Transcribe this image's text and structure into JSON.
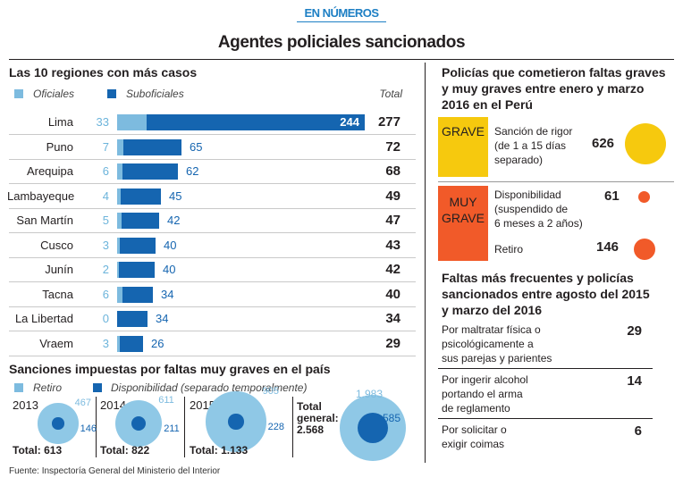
{
  "header": {
    "kicker": "EN NÚMEROS",
    "title": "Agentes policiales sancionados"
  },
  "chart_data": [
    {
      "type": "bar",
      "title": "Las 10 regiones con más casos",
      "total_header": "Total",
      "categories": [
        "Lima",
        "Puno",
        "Arequipa",
        "Lambayeque",
        "San Martín",
        "Cusco",
        "Junín",
        "Tacna",
        "La Libertad",
        "Vraem"
      ],
      "series": [
        {
          "name": "Oficiales",
          "color": "#7dbbdf",
          "values": [
            33,
            7,
            6,
            4,
            5,
            3,
            2,
            6,
            0,
            3
          ]
        },
        {
          "name": "Suboficiales",
          "color": "#1565b0",
          "values": [
            244,
            65,
            62,
            45,
            42,
            40,
            40,
            34,
            34,
            26
          ]
        }
      ],
      "totals": [
        277,
        72,
        68,
        49,
        47,
        43,
        42,
        40,
        34,
        29
      ]
    },
    {
      "type": "bubble",
      "title": "Sanciones impuestas por faltas muy graves en el país",
      "legend": [
        "Retiro",
        "Disponibilidad (separado temporalmente)"
      ],
      "groups": [
        {
          "year": "2013",
          "retiro": 467,
          "retiro_label": "467",
          "disponibilidad": 146,
          "disponibilidad_label": "146",
          "total_label": "Total: 613"
        },
        {
          "year": "2014",
          "retiro": 611,
          "retiro_label": "611",
          "disponibilidad": 211,
          "disponibilidad_label": "211",
          "total_label": "Total: 822"
        },
        {
          "year": "2015",
          "retiro": 905,
          "retiro_label": "905",
          "disponibilidad": 228,
          "disponibilidad_label": "228",
          "total_label": "Total: 1.133"
        }
      ],
      "general": {
        "line1": "Total",
        "line2": "general:",
        "value_label": "2.568",
        "retiro": 1983,
        "retiro_label": "1.983",
        "disponibilidad": 585,
        "disponibilidad_label": "585"
      }
    },
    {
      "type": "bubble",
      "title_lines": [
        "Policías que cometieron faltas graves",
        "y muy graves entre enero y marzo",
        "2016 en el Perú"
      ],
      "grave": {
        "label": "GRAVE",
        "color": "#f6c90e",
        "desc": [
          "Sanción de rigor",
          "(de 1 a 15 días",
          "separado)"
        ],
        "value": 626
      },
      "muy_grave": {
        "label_lines": [
          "MUY",
          "GRAVE"
        ],
        "color": "#f15a29",
        "items": [
          {
            "desc": [
              "Disponibilidad",
              "(suspendido de",
              "6 meses a 2 años)"
            ],
            "value": 61
          },
          {
            "desc": [
              "Retiro"
            ],
            "value": 146
          }
        ]
      }
    },
    {
      "type": "table",
      "title_lines": [
        "Faltas más frecuentes y policías",
        "sancionados entre agosto del 2015",
        "y marzo del 2016"
      ],
      "rows": [
        {
          "desc": [
            "Por maltratar física o",
            "psicológicamente a",
            "sus parejas y parientes"
          ],
          "value": 29
        },
        {
          "desc": [
            "Por ingerir alcohol",
            "portando el arma",
            "de reglamento"
          ],
          "value": 14
        },
        {
          "desc": [
            "Por solicitar o",
            "exigir coimas"
          ],
          "value": 6
        }
      ]
    }
  ],
  "source": "Fuente: Inspectoría General del Ministerio del Interior"
}
